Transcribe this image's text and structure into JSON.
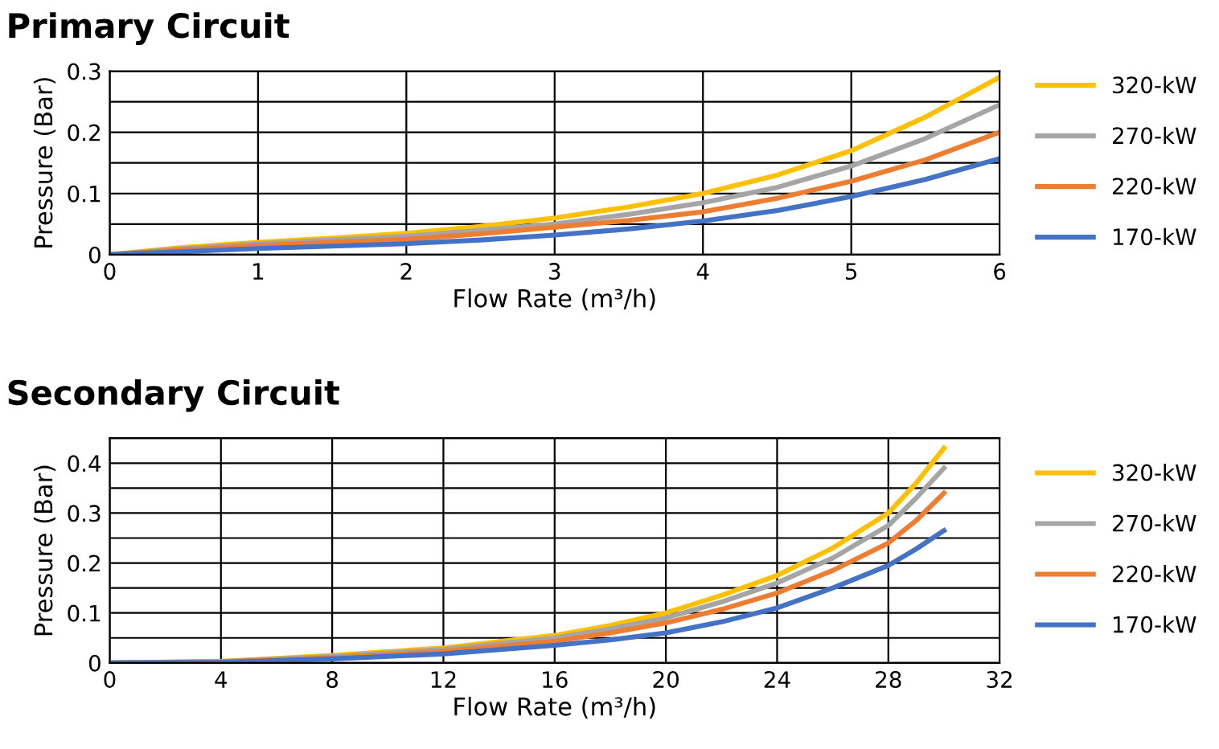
{
  "chart_data": [
    {
      "type": "line",
      "title": "Primary Circuit",
      "xlabel": "Flow Rate (m³/h)",
      "ylabel": "Pressure (Bar)",
      "xlim": [
        0,
        6
      ],
      "xticks": [
        0,
        1,
        2,
        3,
        4,
        5,
        6
      ],
      "ylim": [
        0,
        0.3
      ],
      "yticks": [
        0,
        {
          "value": 0.05,
          "label": null
        },
        0.1,
        {
          "value": 0.15,
          "label": null
        },
        0.2,
        {
          "value": 0.25,
          "label": null
        },
        0.3
      ],
      "grid": true,
      "legend": "right",
      "line_style": "solid",
      "x": [
        0,
        0.5,
        1,
        1.5,
        2,
        2.5,
        3,
        3.5,
        4,
        4.5,
        5,
        5.5,
        6
      ],
      "series": [
        {
          "name": "320-kW",
          "color": "#ffc000",
          "values": [
            0,
            0.012,
            0.02,
            0.027,
            0.035,
            0.046,
            0.06,
            0.078,
            0.1,
            0.13,
            0.17,
            0.225,
            0.29
          ]
        },
        {
          "name": "270-kW",
          "color": "#a5a5a5",
          "values": [
            0,
            0.01,
            0.018,
            0.024,
            0.03,
            0.04,
            0.05,
            0.066,
            0.085,
            0.11,
            0.145,
            0.19,
            0.245
          ]
        },
        {
          "name": "220-kW",
          "color": "#ed7d31",
          "values": [
            0,
            0.008,
            0.015,
            0.02,
            0.025,
            0.034,
            0.045,
            0.056,
            0.07,
            0.092,
            0.12,
            0.155,
            0.2
          ]
        },
        {
          "name": "170-kW",
          "color": "#4472c4",
          "values": [
            0,
            0.005,
            0.01,
            0.014,
            0.018,
            0.024,
            0.032,
            0.042,
            0.055,
            0.072,
            0.095,
            0.123,
            0.157
          ]
        }
      ]
    },
    {
      "type": "line",
      "title": "Secondary Circuit",
      "xlabel": "Flow Rate (m³/h)",
      "ylabel": "Pressure (Bar)",
      "xlim": [
        0,
        32
      ],
      "xticks": [
        0,
        4,
        8,
        12,
        16,
        20,
        24,
        28,
        32
      ],
      "ylim": [
        0,
        0.45
      ],
      "yticks": [
        0,
        {
          "value": 0.05,
          "label": null
        },
        0.1,
        {
          "value": 0.15,
          "label": null
        },
        0.2,
        {
          "value": 0.25,
          "label": null
        },
        0.3,
        {
          "value": 0.35,
          "label": null
        },
        0.4,
        {
          "value": 0.45,
          "label": null
        }
      ],
      "grid": true,
      "legend": "right",
      "line_style": "solid",
      "x": [
        0,
        4,
        8,
        12,
        16,
        18,
        20,
        22,
        24,
        26,
        28,
        29,
        30
      ],
      "series": [
        {
          "name": "320-kW",
          "color": "#ffc000",
          "values": [
            0,
            0.003,
            0.015,
            0.03,
            0.055,
            0.075,
            0.1,
            0.135,
            0.175,
            0.23,
            0.3,
            0.36,
            0.43
          ]
        },
        {
          "name": "270-kW",
          "color": "#a5a5a5",
          "values": [
            0,
            0.003,
            0.013,
            0.027,
            0.05,
            0.068,
            0.09,
            0.122,
            0.16,
            0.21,
            0.275,
            0.33,
            0.39
          ]
        },
        {
          "name": "220-kW",
          "color": "#ed7d31",
          "values": [
            0,
            0.002,
            0.01,
            0.023,
            0.043,
            0.06,
            0.08,
            0.107,
            0.14,
            0.185,
            0.24,
            0.285,
            0.34
          ]
        },
        {
          "name": "170-kW",
          "color": "#4472c4",
          "values": [
            0,
            0.001,
            0.008,
            0.018,
            0.035,
            0.046,
            0.06,
            0.082,
            0.11,
            0.15,
            0.195,
            0.228,
            0.265
          ]
        }
      ]
    }
  ]
}
